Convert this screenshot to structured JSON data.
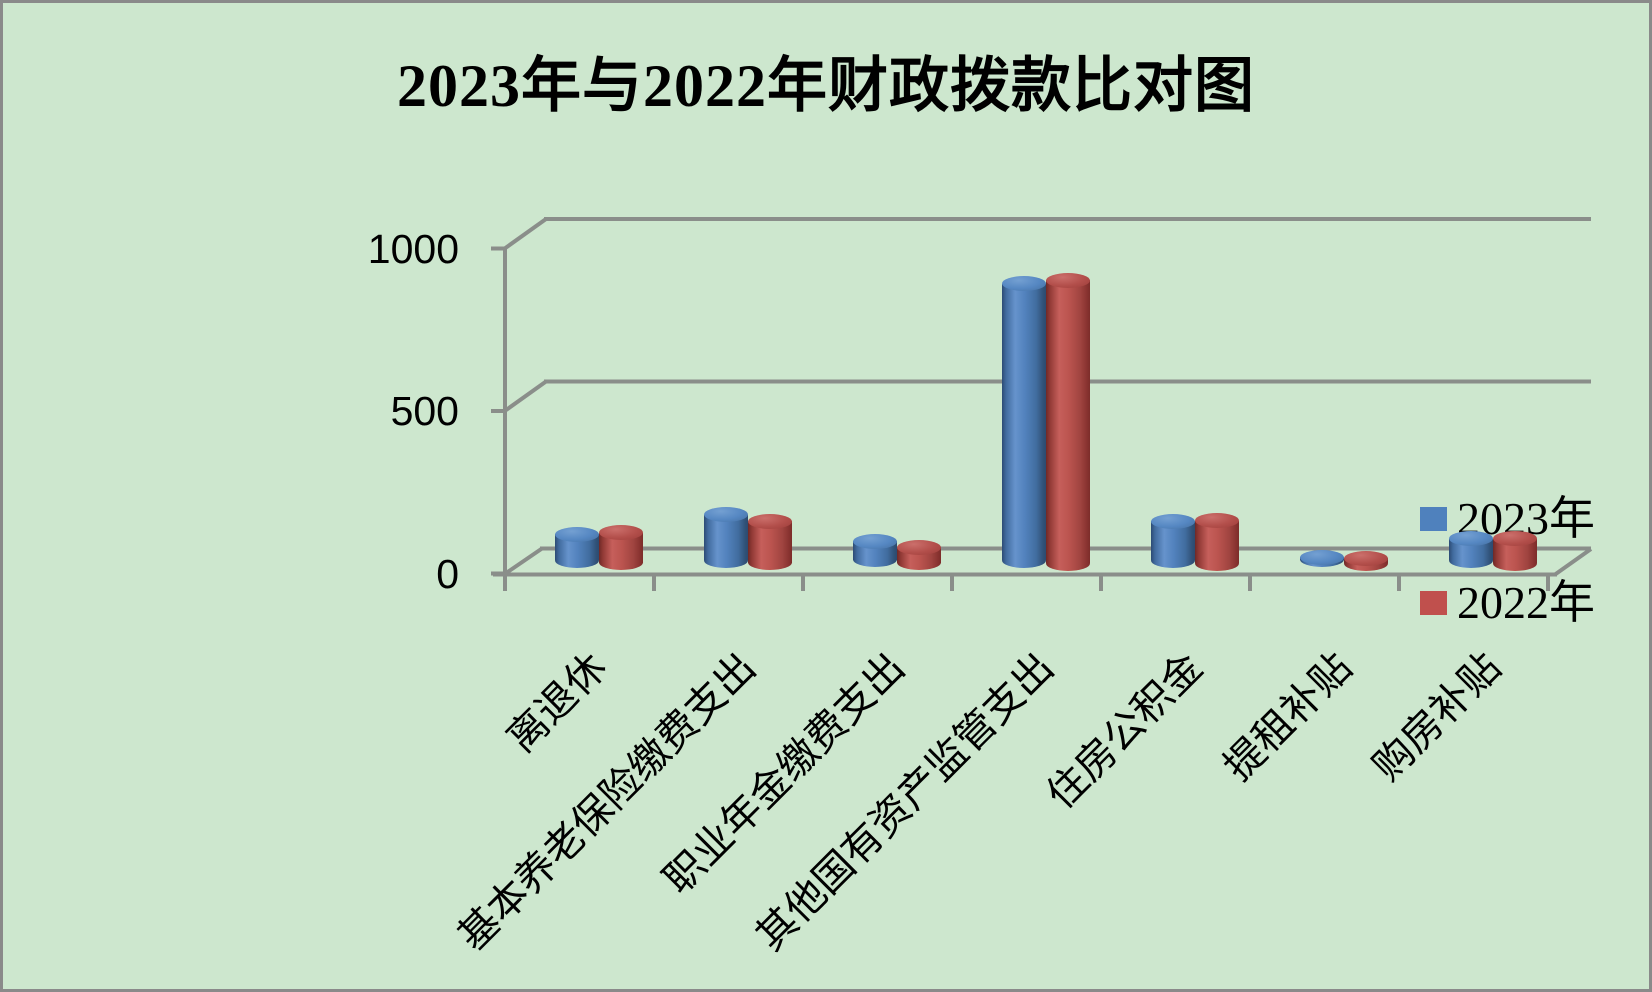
{
  "title": "2023年与2022年财政拨款比对图",
  "colors": {
    "background": "#cde7ce",
    "frame_border": "#8a8a8a",
    "grid": "#8a8e8a",
    "series_2023": "#4f81bd",
    "series_2022": "#c0504d",
    "text": "#000000"
  },
  "y_axis": {
    "tick_labels": [
      "1000",
      "500",
      "0"
    ]
  },
  "legend": {
    "position": "right-middle",
    "items": [
      {
        "label": "2023年",
        "color": "#4f81bd"
      },
      {
        "label": "2022年",
        "color": "#c0504d"
      }
    ]
  },
  "chart_data": {
    "type": "bar",
    "style": "3d-cylinder",
    "title": "2023年与2022年财政拨款比对图",
    "categories": [
      "离退休",
      "基本养老保险缴费支出",
      "职业年金缴费支出",
      "其他国有资产监管支出",
      "住房公积金",
      "提租补贴",
      "购房补贴"
    ],
    "series": [
      {
        "name": "2023年",
        "color": "#4f81bd",
        "values": [
          80,
          140,
          58,
          850,
          120,
          8,
          65
        ]
      },
      {
        "name": "2022年",
        "color": "#c0504d",
        "values": [
          93,
          128,
          49,
          870,
          130,
          15,
          75
        ]
      }
    ],
    "xlabel": "",
    "ylabel": "",
    "ylim": [
      0,
      1000
    ],
    "yticks": [
      0,
      500,
      1000
    ],
    "grid": true,
    "legend_position": "right"
  }
}
